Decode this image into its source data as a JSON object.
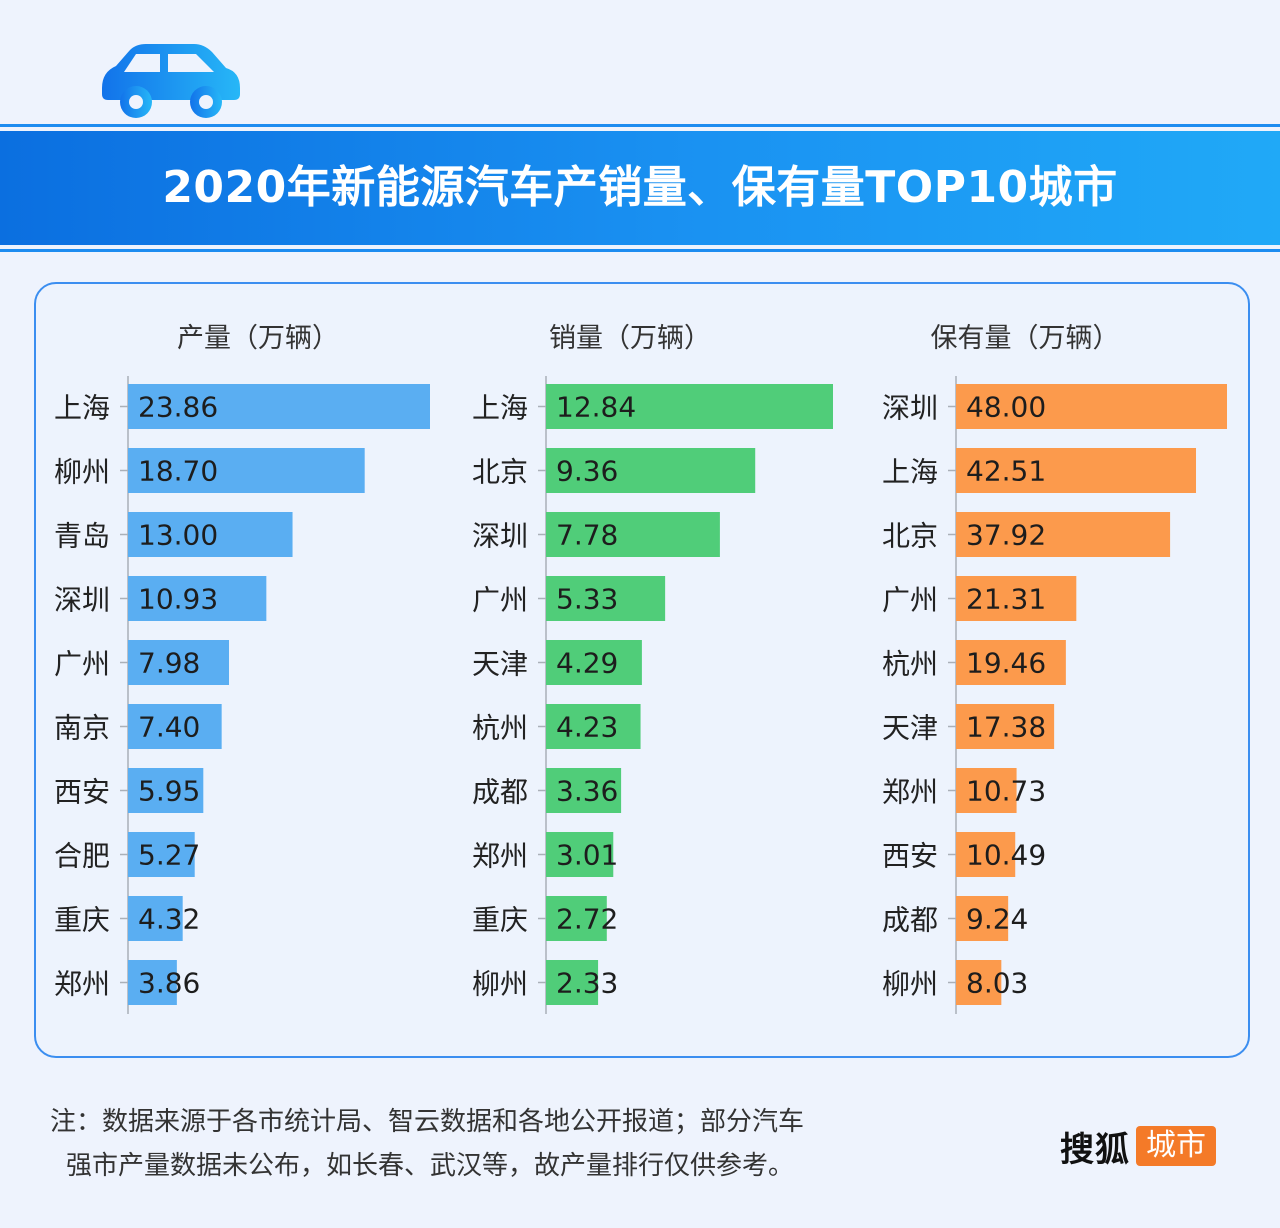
{
  "title": "2020年新能源汽车产销量、保有量TOP10城市",
  "colors": {
    "production": "#5aaef2",
    "sales": "#50cd79",
    "ownership": "#fc9a4c",
    "banner": "#1a8df0"
  },
  "icons": {
    "header": "car-icon"
  },
  "chart_data": [
    {
      "type": "bar",
      "orientation": "horizontal",
      "title": "产量（万辆）",
      "categories": [
        "上海",
        "柳州",
        "青岛",
        "深圳",
        "广州",
        "南京",
        "西安",
        "合肥",
        "重庆",
        "郑州"
      ],
      "values": [
        23.86,
        18.7,
        13.0,
        10.93,
        7.98,
        7.4,
        5.95,
        5.27,
        4.32,
        3.86
      ],
      "labels": [
        "23.86",
        "18.70",
        "13.00",
        "10.93",
        "7.98",
        "7.40",
        "5.95",
        "5.27",
        "4.32",
        "3.86"
      ]
    },
    {
      "type": "bar",
      "orientation": "horizontal",
      "title": "销量（万辆）",
      "categories": [
        "上海",
        "北京",
        "深圳",
        "广州",
        "天津",
        "杭州",
        "成都",
        "郑州",
        "重庆",
        "柳州"
      ],
      "values": [
        12.84,
        9.36,
        7.78,
        5.33,
        4.29,
        4.23,
        3.36,
        3.01,
        2.72,
        2.33
      ],
      "labels": [
        "12.84",
        "9.36",
        "7.78",
        "5.33",
        "4.29",
        "4.23",
        "3.36",
        "3.01",
        "2.72",
        "2.33"
      ]
    },
    {
      "type": "bar",
      "orientation": "horizontal",
      "title": "保有量（万辆）",
      "categories": [
        "深圳",
        "上海",
        "北京",
        "广州",
        "杭州",
        "天津",
        "郑州",
        "西安",
        "成都",
        "柳州"
      ],
      "values": [
        48.0,
        42.51,
        37.92,
        21.31,
        19.46,
        17.38,
        10.73,
        10.49,
        9.24,
        8.03
      ],
      "labels": [
        "48.00",
        "42.51",
        "37.92",
        "21.31",
        "19.46",
        "17.38",
        "10.73",
        "10.49",
        "9.24",
        "8.03"
      ]
    }
  ],
  "note": {
    "line1": "注：数据来源于各市统计局、智云数据和各地公开报道；部分汽车",
    "line2": "强市产量数据未公布，如长春、武汉等，故产量排行仅供参考。"
  },
  "brand": {
    "name": "搜狐",
    "tag": "城市"
  }
}
